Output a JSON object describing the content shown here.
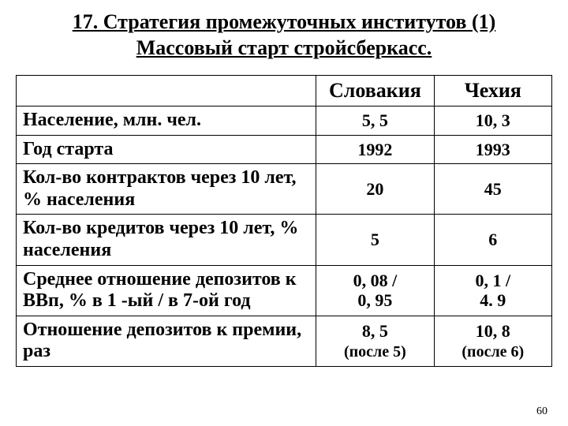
{
  "title_line1": "17. Стратегия промежуточных институтов (1)",
  "title_line2": "Массовый старт стройсберкасс.",
  "page_number": "60",
  "table": {
    "col_headers": [
      "Словакия",
      "Чехия"
    ],
    "rows": [
      {
        "label": "Население, млн. чел.",
        "v1": "5, 5",
        "v2": "10, 3"
      },
      {
        "label": "Год старта",
        "v1": "1992",
        "v2": "1993"
      },
      {
        "label": "Кол-во контрактов через 10 лет,  % населения",
        "v1": "20",
        "v2": "45"
      },
      {
        "label": "Кол-во кредитов через 10 лет, % населения",
        "v1": "5",
        "v2": "6"
      },
      {
        "label": "Среднее отношение депозитов к ВВп, % в 1 -ый / в 7-ой год",
        "v1": "0, 08 /\n0, 95",
        "v2": "0, 1 /\n4. 9"
      },
      {
        "label": "Отношение депозитов к премии, раз",
        "v1": "8, 5",
        "v1_note": "(после  5)",
        "v2": "10, 8",
        "v2_note": "(после 6)"
      }
    ]
  },
  "styling": {
    "background_color": "#ffffff",
    "text_color": "#000000",
    "border_color": "#000000",
    "title_fontsize": 26,
    "header_fontsize": 26,
    "label_fontsize": 24,
    "value_fontsize": 22,
    "font_family": "Times New Roman"
  }
}
